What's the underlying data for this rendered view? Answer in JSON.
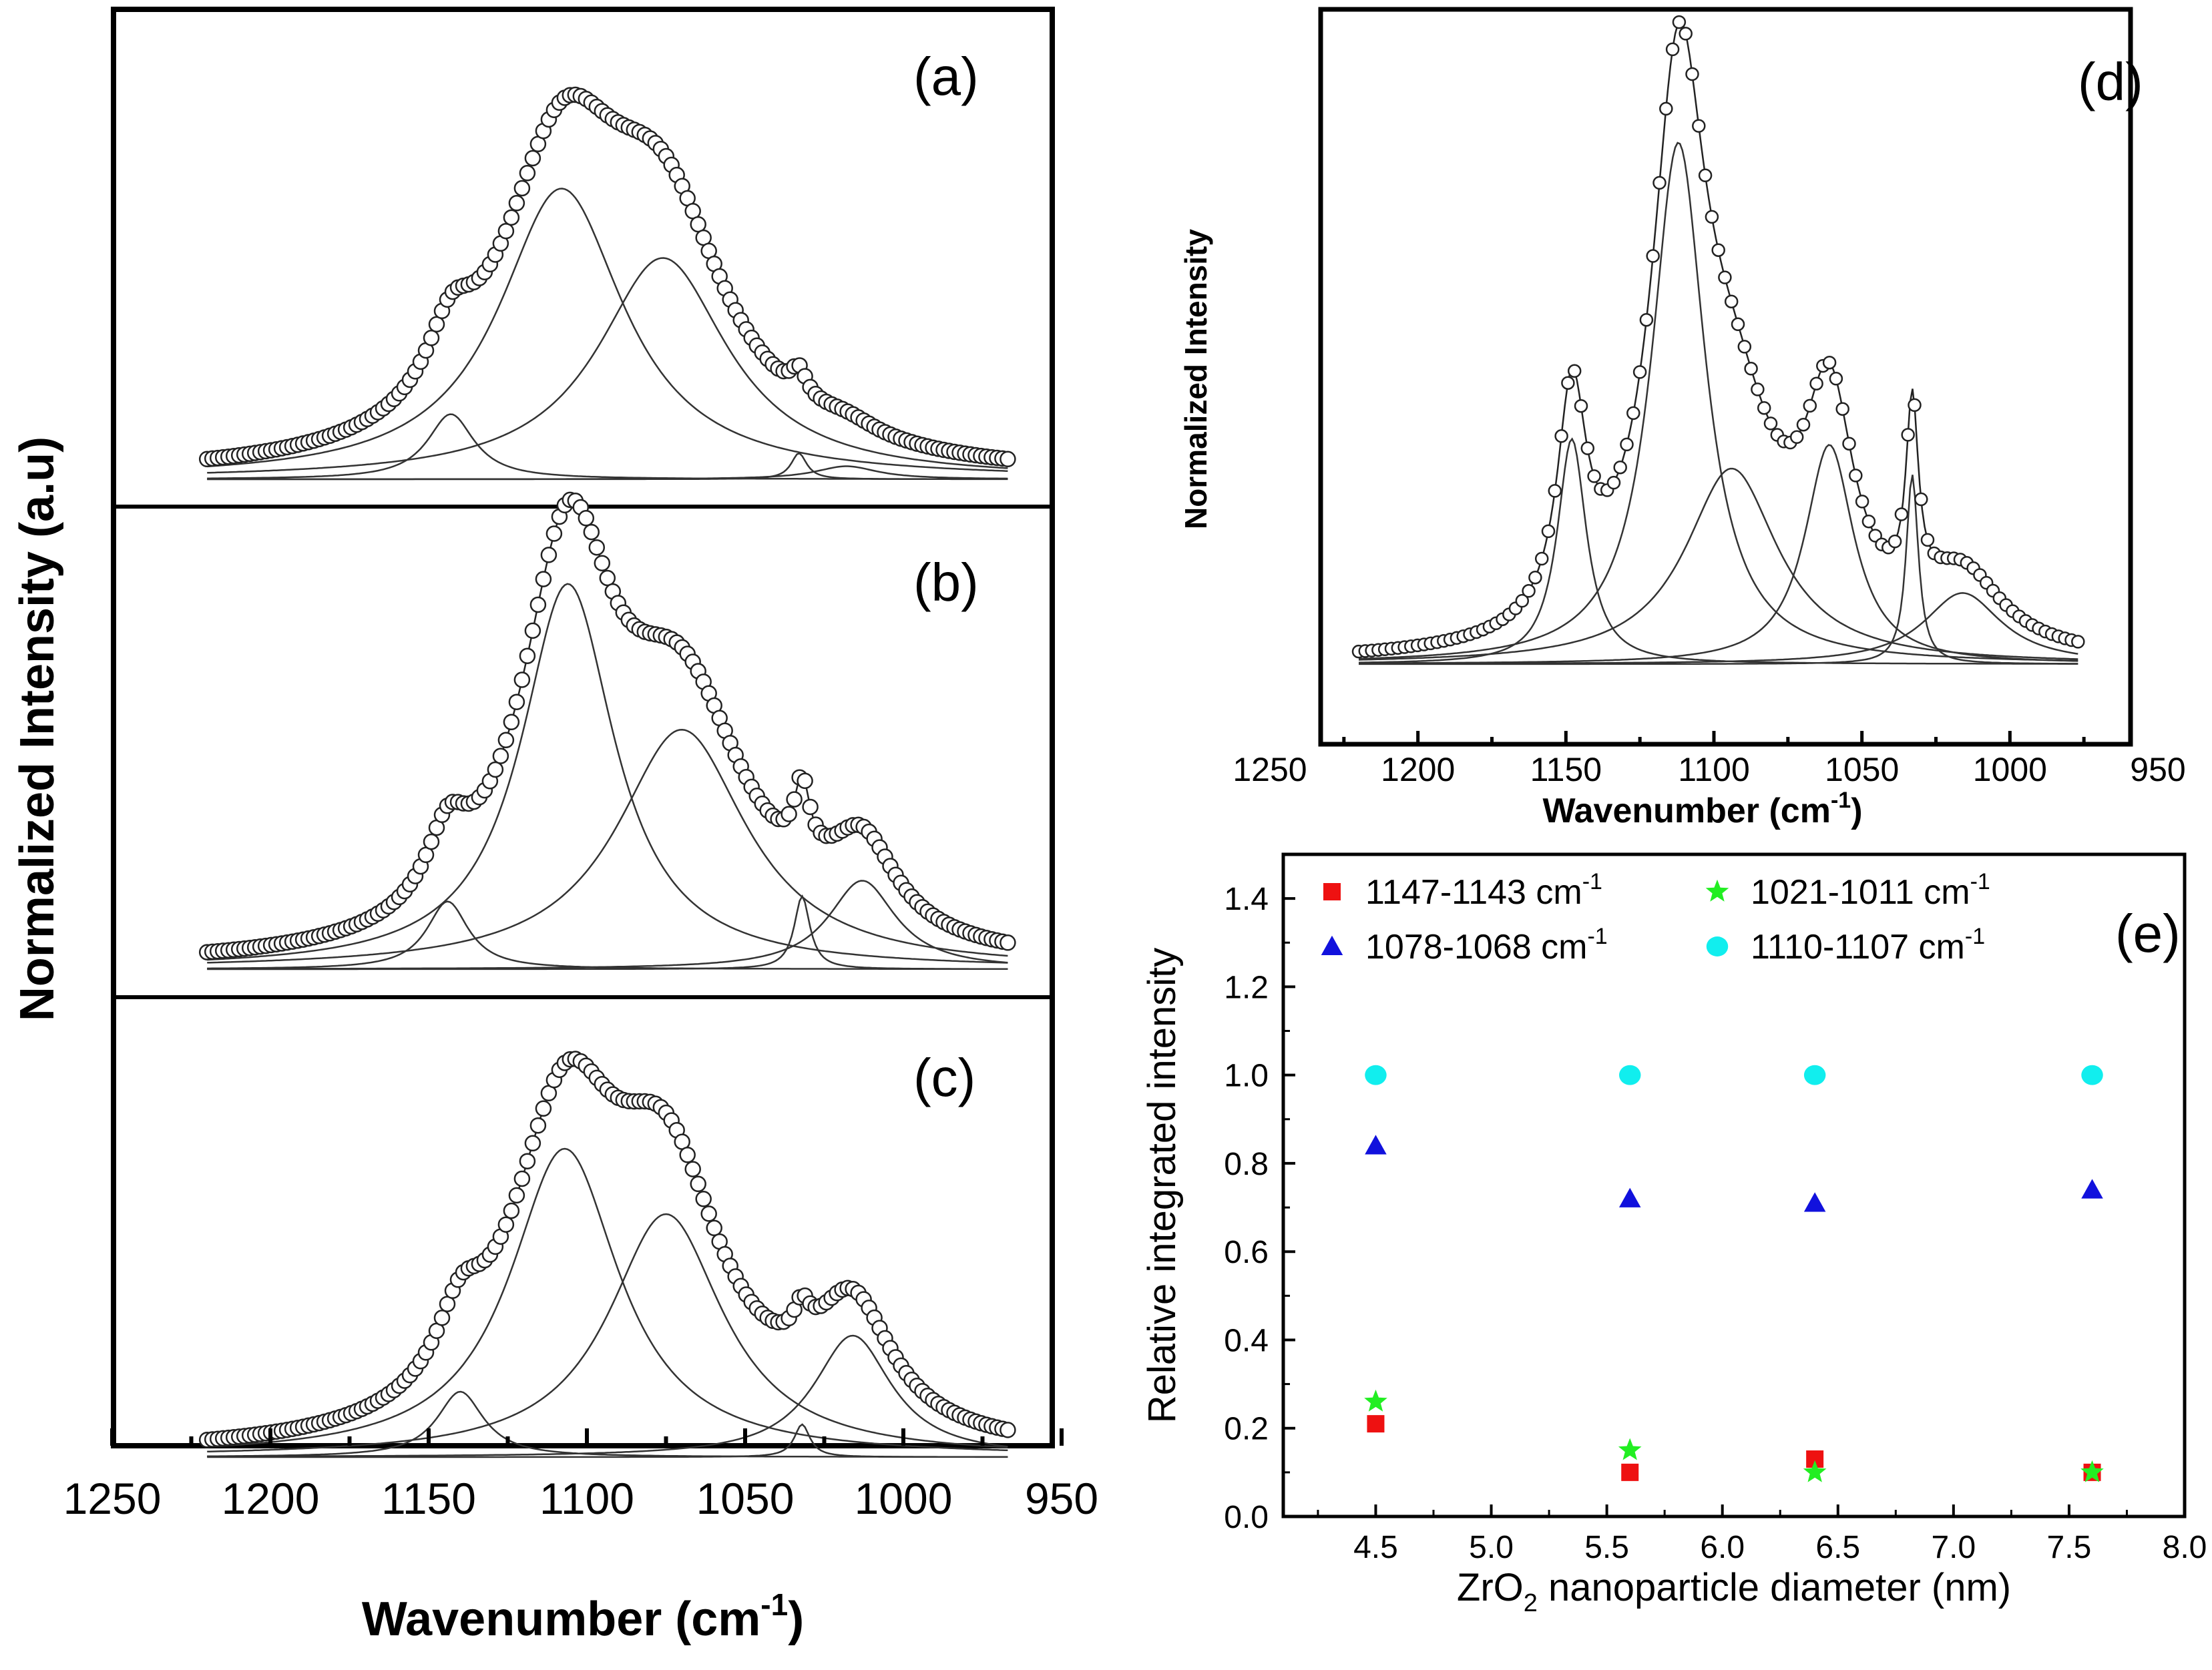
{
  "chart_data": [
    {
      "panel": "(a)",
      "type": "line",
      "xlabel": "Wavenumber (cm-1)",
      "ylabel": "Normalized Intensity (a.u)",
      "x_range_plotted": [
        1220,
        967
      ],
      "xlim": [
        1250,
        950
      ],
      "xticks": [
        1250,
        1200,
        1150,
        1100,
        1050,
        1000,
        950
      ],
      "peaks": [
        {
          "center": 1108,
          "height": 0.67,
          "width": 24
        },
        {
          "center": 1076,
          "height": 0.51,
          "width": 25
        },
        {
          "center": 1143,
          "height": 0.15,
          "width": 9
        },
        {
          "center": 1033,
          "height": 0.06,
          "width": 3
        },
        {
          "center": 1018,
          "height": 0.03,
          "width": 12
        }
      ],
      "envelope_markers": "open circles"
    },
    {
      "panel": "(b)",
      "type": "line",
      "x_range_plotted": [
        1220,
        967
      ],
      "xlim": [
        1250,
        950
      ],
      "peaks": [
        {
          "center": 1106,
          "height": 0.74,
          "width": 18
        },
        {
          "center": 1070,
          "height": 0.46,
          "width": 25
        },
        {
          "center": 1144,
          "height": 0.13,
          "width": 8
        },
        {
          "center": 1032,
          "height": 0.14,
          "width": 3
        },
        {
          "center": 1013,
          "height": 0.17,
          "width": 13
        }
      ],
      "envelope_markers": "open circles"
    },
    {
      "panel": "(c)",
      "type": "line",
      "x_range_plotted": [
        1220,
        967
      ],
      "xlim": [
        1250,
        950
      ],
      "peaks": [
        {
          "center": 1107,
          "height": 0.66,
          "width": 21
        },
        {
          "center": 1075,
          "height": 0.52,
          "width": 22
        },
        {
          "center": 1140,
          "height": 0.14,
          "width": 9
        },
        {
          "center": 1032,
          "height": 0.07,
          "width": 3
        },
        {
          "center": 1016,
          "height": 0.26,
          "width": 15
        }
      ],
      "envelope_markers": "open circles"
    },
    {
      "panel": "(d)",
      "type": "line",
      "xlabel": "Wavenumber (cm-1)",
      "ylabel": "Normalized Intensity",
      "x_range_plotted": [
        1220,
        977
      ],
      "xlim": [
        1250,
        950
      ],
      "xticks": [
        1250,
        1200,
        1150,
        1100,
        1050,
        1000,
        950
      ],
      "peaks": [
        {
          "center": 1112,
          "height": 0.88,
          "width": 11
        },
        {
          "center": 1094,
          "height": 0.33,
          "width": 19
        },
        {
          "center": 1148,
          "height": 0.38,
          "width": 6
        },
        {
          "center": 1061,
          "height": 0.37,
          "width": 10
        },
        {
          "center": 1033,
          "height": 0.32,
          "width": 2.5
        },
        {
          "center": 1016,
          "height": 0.12,
          "width": 16
        }
      ],
      "envelope_markers": "open circles"
    },
    {
      "panel": "(e)",
      "type": "scatter",
      "xlabel_main": "ZrO",
      "xlabel_sub": "2",
      "xlabel_rest": " nanoparticle diameter (nm)",
      "ylabel": "Relative integrated intensity",
      "xlim": [
        4.1,
        8.0
      ],
      "ylim": [
        0,
        1.5
      ],
      "xticks": [
        "4.5",
        "5.0",
        "5.5",
        "6.0",
        "6.5",
        "7.0",
        "7.5",
        "8.0"
      ],
      "yticks": [
        "0.0",
        "0.2",
        "0.4",
        "0.6",
        "0.8",
        "1.0",
        "1.2",
        "1.4"
      ],
      "legend_position": "top",
      "series": [
        {
          "name": "1147-1143 cm-1",
          "name_main": "1147-1143 cm",
          "name_sup": "-1",
          "marker": "square",
          "color": "#ee1111",
          "x": [
            4.5,
            5.6,
            6.4,
            7.6
          ],
          "y": [
            0.21,
            0.1,
            0.13,
            0.1
          ]
        },
        {
          "name": "1021-1011 cm-1",
          "name_main": "1021-1011 cm",
          "name_sup": "-1",
          "marker": "star",
          "color": "#22ee22",
          "x": [
            4.5,
            5.6,
            6.4,
            7.6
          ],
          "y": [
            0.26,
            0.15,
            0.1,
            0.1
          ]
        },
        {
          "name": "1078-1068 cm-1",
          "name_main": "1078-1068 cm",
          "name_sup": "-1",
          "marker": "triangle",
          "color": "#1111dd",
          "x": [
            4.5,
            5.6,
            6.4,
            7.6
          ],
          "y": [
            0.84,
            0.72,
            0.71,
            0.74
          ]
        },
        {
          "name": "1110-1107 cm-1",
          "name_main": "1110-1107 cm",
          "name_sup": "-1",
          "marker": "circle",
          "color": "#11eeee",
          "x": [
            4.5,
            5.6,
            6.4,
            7.6
          ],
          "y": [
            1.0,
            1.0,
            1.0,
            1.0
          ]
        }
      ]
    }
  ],
  "labels": {
    "panel_a": "(a)",
    "panel_b": "(b)",
    "panel_c": "(c)",
    "panel_d": "(d)",
    "panel_e": "(e)",
    "left_xlabel_main": "Wavenumber (cm",
    "left_xlabel_sup": "-1",
    "left_xlabel_end": ")",
    "left_ylabel": "Normalized Intensity (a.u)",
    "d_xlabel_main": "Wavenumber (cm",
    "d_xlabel_sup": "-1",
    "d_xlabel_end": ")",
    "d_ylabel": "Normalized Intensity",
    "e_ylabel": "Relative integrated intensity",
    "e_xlabel_main": "ZrO",
    "e_xlabel_sub": "2",
    "e_xlabel_rest": " nanoparticle diameter (nm)"
  }
}
